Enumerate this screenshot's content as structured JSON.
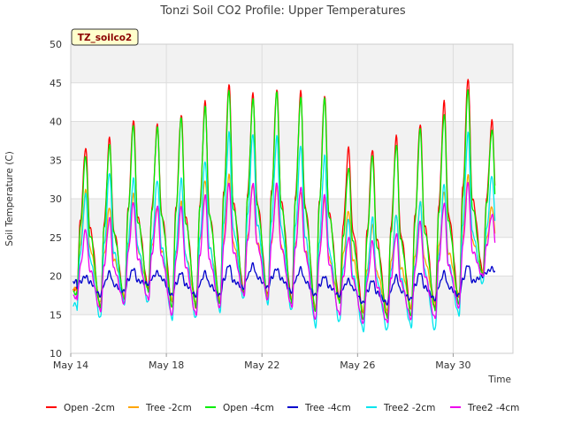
{
  "chart_data": {
    "type": "line",
    "title": "Tonzi Soil CO2 Profile: Upper Temperatures",
    "xlabel": "Time",
    "ylabel": "Soil Temperature (C)",
    "badge": "TZ_soilco2",
    "ylim": [
      10,
      50
    ],
    "yticks": [
      10,
      15,
      20,
      25,
      30,
      35,
      40,
      45,
      50
    ],
    "xlim": [
      "2020-05-14",
      "2020-06-01T12:00"
    ],
    "xticks": [
      {
        "date": "2020-05-14",
        "label": "May 14"
      },
      {
        "date": "2020-05-18",
        "label": "May 18"
      },
      {
        "date": "2020-05-22",
        "label": "May 22"
      },
      {
        "date": "2020-05-26",
        "label": "May 26"
      },
      {
        "date": "2020-05-30",
        "label": "May 30"
      }
    ],
    "grid": true,
    "shaded_bands": [
      [
        15,
        20
      ],
      [
        25,
        30
      ],
      [
        35,
        40
      ],
      [
        45,
        50
      ]
    ],
    "legend_position": "bottom",
    "days": [
      "2020-05-14",
      "2020-05-15",
      "2020-05-16",
      "2020-05-17",
      "2020-05-18",
      "2020-05-19",
      "2020-05-20",
      "2020-05-21",
      "2020-05-22",
      "2020-05-23",
      "2020-05-24",
      "2020-05-25",
      "2020-05-26",
      "2020-05-27",
      "2020-05-28",
      "2020-05-29",
      "2020-05-30",
      "2020-05-31"
    ],
    "series": [
      {
        "name": "Open -2cm",
        "color": "#ff0000",
        "daily_max": [
          36.7,
          37.8,
          40.3,
          39.5,
          41.0,
          42.5,
          45.0,
          43.5,
          44.3,
          43.8,
          43.5,
          36.5,
          36.5,
          38.0,
          39.8,
          42.5,
          45.7,
          40.0
        ],
        "daily_min": [
          17.5,
          16.0,
          17.0,
          18.5,
          16.5,
          16.0,
          16.5,
          18.0,
          17.5,
          17.0,
          15.5,
          17.0,
          15.0,
          15.0,
          15.5,
          16.0,
          17.0,
          20.5
        ]
      },
      {
        "name": "Tree -2cm",
        "color": "#ffa500",
        "daily_max": [
          31.0,
          29.0,
          30.5,
          29.0,
          29.5,
          32.5,
          33.0,
          32.0,
          31.5,
          31.0,
          30.0,
          28.5,
          26.5,
          28.0,
          29.5,
          31.0,
          33.0,
          29.0
        ],
        "daily_min": [
          17.5,
          16.5,
          17.5,
          18.5,
          17.0,
          16.5,
          17.0,
          18.0,
          17.5,
          17.0,
          16.0,
          17.0,
          15.5,
          15.5,
          16.0,
          16.5,
          17.5,
          20.5
        ]
      },
      {
        "name": "Open -4cm",
        "color": "#00ee00",
        "daily_max": [
          35.5,
          37.0,
          39.5,
          39.3,
          40.5,
          42.0,
          44.0,
          43.0,
          43.8,
          43.2,
          43.0,
          34.0,
          35.5,
          37.0,
          39.0,
          41.0,
          44.0,
          39.0
        ],
        "daily_min": [
          17.0,
          16.0,
          17.0,
          18.0,
          16.0,
          16.0,
          16.5,
          17.5,
          17.0,
          16.5,
          15.5,
          16.5,
          14.5,
          14.5,
          15.0,
          15.5,
          16.5,
          20.0
        ]
      },
      {
        "name": "Tree -4cm",
        "color": "#0000cc",
        "daily_max": [
          20.0,
          20.5,
          21.0,
          20.5,
          20.5,
          20.5,
          21.5,
          21.5,
          21.0,
          21.0,
          20.0,
          19.5,
          19.5,
          20.0,
          20.5,
          20.5,
          21.5,
          21.0
        ],
        "daily_min": [
          18.5,
          17.5,
          18.0,
          19.0,
          17.5,
          17.5,
          17.5,
          18.5,
          18.5,
          18.0,
          17.5,
          17.5,
          16.5,
          16.5,
          17.0,
          17.0,
          17.5,
          20.0
        ]
      },
      {
        "name": "Tree2 -2cm",
        "color": "#00e5ee",
        "daily_max": [
          30.5,
          33.5,
          32.5,
          32.5,
          32.5,
          35.0,
          38.5,
          38.5,
          38.0,
          37.0,
          35.5,
          27.5,
          27.5,
          28.0,
          29.5,
          32.0,
          38.5,
          33.0
        ],
        "daily_min": [
          15.5,
          14.5,
          16.5,
          16.5,
          14.5,
          14.5,
          15.5,
          17.0,
          16.5,
          15.5,
          13.5,
          14.0,
          13.0,
          13.0,
          13.5,
          13.0,
          15.0,
          19.0
        ]
      },
      {
        "name": "Tree2 -4cm",
        "color": "#ee00ee",
        "daily_max": [
          26.0,
          27.5,
          29.5,
          29.0,
          29.0,
          30.5,
          32.0,
          32.0,
          32.0,
          31.5,
          30.5,
          25.0,
          24.5,
          25.5,
          27.0,
          29.5,
          32.0,
          28.0
        ],
        "daily_min": [
          16.5,
          15.5,
          16.5,
          17.0,
          15.0,
          15.0,
          16.0,
          17.5,
          17.0,
          16.0,
          14.5,
          15.0,
          14.0,
          14.0,
          14.5,
          14.5,
          16.0,
          20.0
        ]
      }
    ]
  }
}
